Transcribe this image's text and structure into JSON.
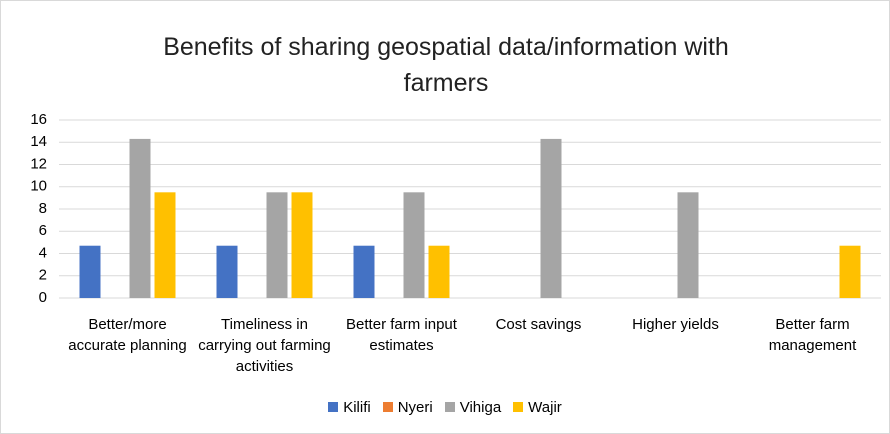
{
  "chart_data": {
    "type": "bar",
    "title": "Benefits of sharing geospatial data/information with farmers",
    "categories": [
      "Better/more accurate planning",
      "Timeliness in carrying out farming activities",
      "Better farm input estimates",
      "Cost savings",
      "Higher yields",
      "Better farm management"
    ],
    "series": [
      {
        "name": "Kilifi",
        "color": "#4472c4",
        "values": [
          4.7,
          4.7,
          4.7,
          0,
          0,
          0
        ]
      },
      {
        "name": "Nyeri",
        "color": "#ed7d31",
        "values": [
          0,
          0,
          0,
          0,
          0,
          0
        ]
      },
      {
        "name": "Vihiga",
        "color": "#a5a5a5",
        "values": [
          14.3,
          9.5,
          9.5,
          14.3,
          9.5,
          0
        ]
      },
      {
        "name": "Wajir",
        "color": "#ffc000",
        "values": [
          9.5,
          9.5,
          4.7,
          0,
          0,
          4.7
        ]
      }
    ],
    "ylim": [
      0,
      16
    ],
    "yticks": [
      0,
      2,
      4,
      6,
      8,
      10,
      12,
      14,
      16
    ],
    "grid": true,
    "legend": "bottom"
  }
}
